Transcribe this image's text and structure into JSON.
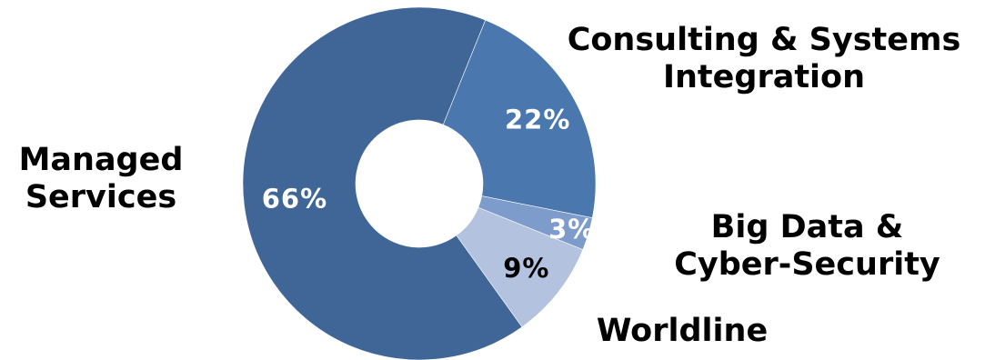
{
  "chart_data": {
    "type": "pie",
    "donut": true,
    "slices": [
      {
        "category": [
          "Consulting & Systems",
          "Integration"
        ],
        "value": 22,
        "value_label": "22%",
        "color": "#4A77AE",
        "label_color": "#FFFFFF"
      },
      {
        "category": [
          "Big Data &",
          "Cyber-Security"
        ],
        "value": 3,
        "value_label": "3%",
        "color": "#7E9CCB",
        "label_color": "#FFFFFF"
      },
      {
        "category": [
          "Worldline"
        ],
        "value": 9,
        "value_label": "9%",
        "color": "#B3C3DF",
        "label_color": "#000000"
      },
      {
        "category": [
          "Managed",
          "Services"
        ],
        "value": 66,
        "value_label": "66%",
        "color": "#3F6697",
        "label_color": "#FFFFFF"
      }
    ],
    "legend": "none"
  }
}
